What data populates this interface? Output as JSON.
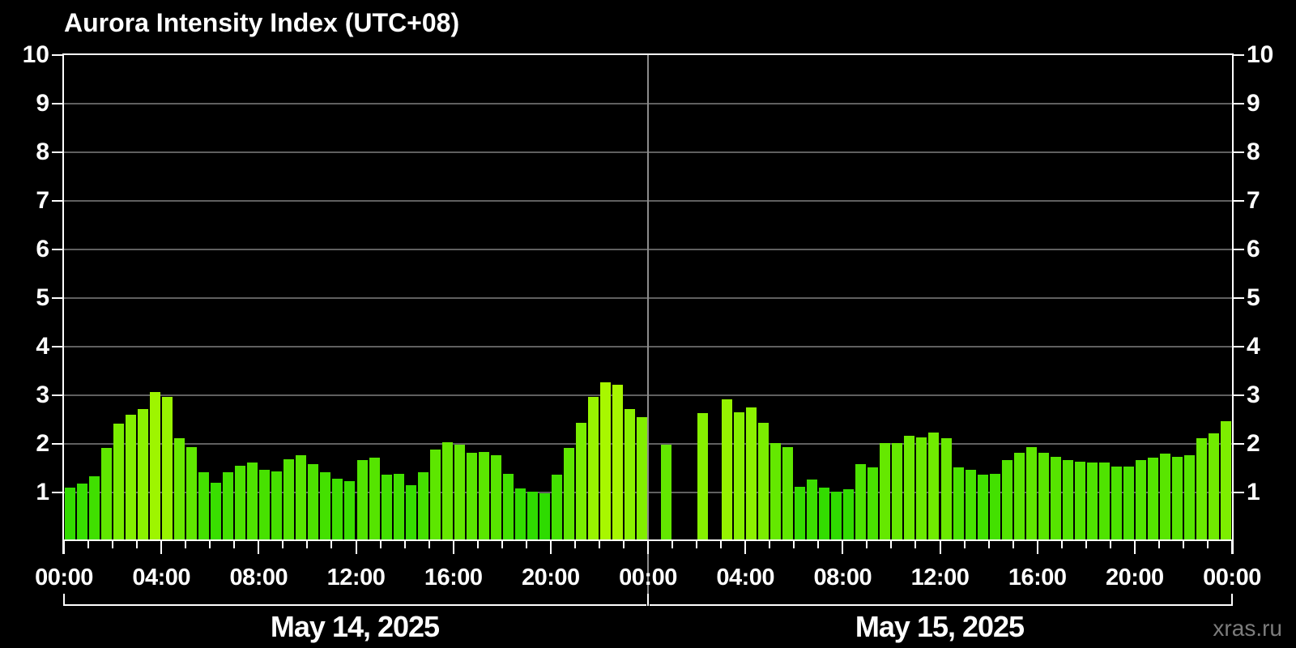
{
  "chart_data": {
    "type": "bar",
    "title": "Aurora Intensity Index (UTC+08)",
    "ylabel": "",
    "xlabel": "",
    "ylim": [
      0,
      10
    ],
    "ytick_labels": [
      "1",
      "2",
      "3",
      "4",
      "5",
      "6",
      "7",
      "8",
      "9",
      "10"
    ],
    "grid": "horizontal gray lines at each integer, no vertical grid except day divider",
    "legend_position": "none",
    "x_major_tick_labels": [
      "00:00",
      "04:00",
      "08:00",
      "12:00",
      "16:00",
      "20:00",
      "00:00",
      "04:00",
      "08:00",
      "12:00",
      "16:00",
      "20:00",
      "00:00"
    ],
    "x_minor_tick_interval_hours": 1,
    "x_major_tick_interval_hours": 4,
    "bar_interval_minutes": 30,
    "days": [
      {
        "label": "May 14, 2025",
        "start_index": 0,
        "bar_count": 48
      },
      {
        "label": "May 15, 2025",
        "start_index": 48,
        "bar_count": 48
      }
    ],
    "values": [
      1.1,
      1.19,
      1.34,
      1.92,
      2.41,
      2.6,
      2.72,
      3.07,
      2.97,
      2.12,
      1.93,
      1.41,
      1.2,
      1.41,
      1.55,
      1.62,
      1.47,
      1.43,
      1.69,
      1.77,
      1.58,
      1.41,
      1.29,
      1.23,
      1.67,
      1.72,
      1.37,
      1.38,
      1.15,
      1.42,
      1.88,
      2.03,
      1.99,
      1.81,
      1.84,
      1.77,
      1.39,
      1.08,
      1.02,
      0.98,
      1.37,
      1.91,
      2.43,
      2.96,
      3.26,
      3.22,
      2.72,
      2.55,
      null,
      1.99,
      null,
      null,
      2.63,
      null,
      2.92,
      2.65,
      2.75,
      2.43,
      2.01,
      1.93,
      1.12,
      1.26,
      1.1,
      1.01,
      1.07,
      1.58,
      1.51,
      2.02,
      2.01,
      2.16,
      2.13,
      2.23,
      2.12,
      1.52,
      1.46,
      1.36,
      1.39,
      1.67,
      1.82,
      1.93,
      1.82,
      1.74,
      1.67,
      1.64,
      1.62,
      1.61,
      1.53,
      1.53,
      1.66,
      1.71,
      1.8,
      1.74,
      1.76,
      2.11,
      2.22,
      2.47
    ],
    "colors": {
      "background": "#000000",
      "axis": "#ffffff",
      "grid": "#606060",
      "day_divider": "#8c8c8c",
      "text": "#ffffff",
      "bar_low_value": "#2edb00",
      "bar_high_value": "#aaf800"
    }
  },
  "watermark": {
    "text": "xras.ru",
    "color": "#7c7c7c"
  }
}
